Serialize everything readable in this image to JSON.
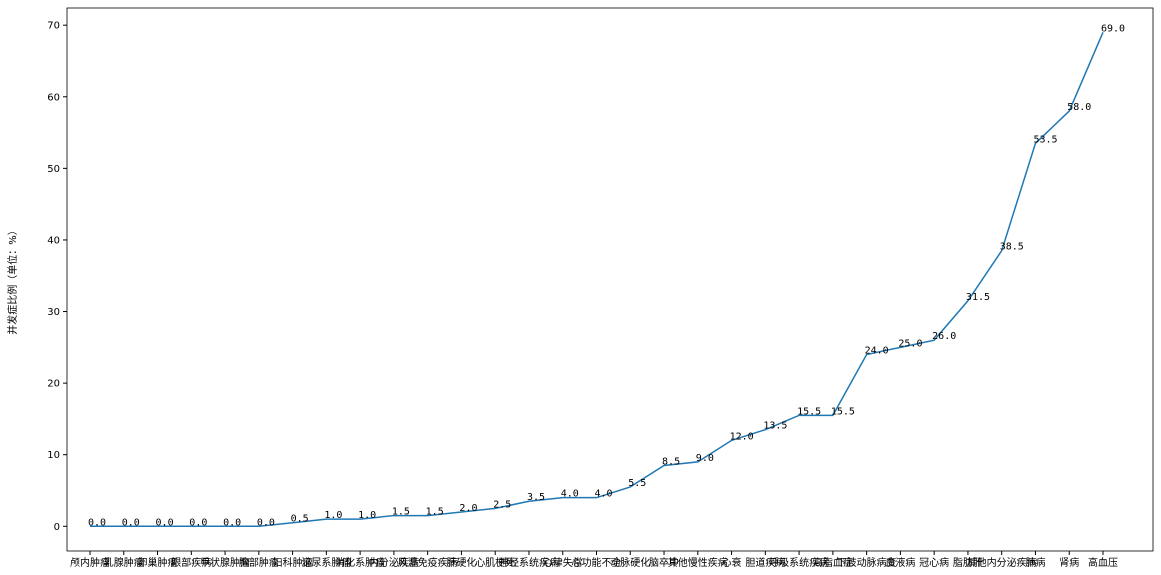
{
  "chart_data": {
    "type": "line",
    "ylabel": "并发症比例（单位：%）",
    "categories": [
      "颅内肿瘤",
      "乳腺肿瘤",
      "卵巢肿瘤",
      "眼部疾病",
      "甲状腺肿瘤",
      "胸部肿瘤",
      "妇科肿瘤",
      "泌尿系肿瘤",
      "消化系肿瘤",
      "内分泌疾病",
      "风湿免疫疾病",
      "肝硬化",
      "心肌梗死",
      "神经系统疾病",
      "心律失常",
      "心功能不全",
      "动脉硬化",
      "脑卒中",
      "其他慢性疾病",
      "心衰",
      "胆道疾病",
      "呼吸系统疾病",
      "高脂血症",
      "下肢动脉病变",
      "血液病",
      "冠心病",
      "脂肪肝",
      "其他内分泌疾病",
      "肺病",
      "肾病",
      "高血压"
    ],
    "series": [
      {
        "name": "并发症比例",
        "color": "#1f77b4",
        "values": [
          0,
          0,
          0,
          0,
          0,
          0,
          0.5,
          1,
          1,
          1.5,
          1.5,
          2,
          2.5,
          3.5,
          4,
          4,
          5.5,
          8.5,
          9,
          12,
          13.5,
          15.5,
          15.5,
          24,
          25,
          26,
          31.5,
          38.5,
          53.5,
          58,
          69
        ],
        "value_labels": [
          "0.0",
          "0.0",
          "0.0",
          "0.0",
          "0.0",
          "0.0",
          "0.5",
          "1.0",
          "1.0",
          "1.5",
          "1.5",
          "2.0",
          "2.5",
          "3.5",
          "4.0",
          "4.0",
          "5.5",
          "8.5",
          "9.0",
          "12.0",
          "13.5",
          "15.5",
          "15.5",
          "24.0",
          "25.0",
          "26.0",
          "31.5",
          "38.5",
          "53.5",
          "58.0",
          "69.0"
        ]
      }
    ],
    "ylim": [
      -3.45,
      72.4
    ],
    "yticks": [
      0,
      10,
      20,
      30,
      40,
      50,
      60,
      70
    ],
    "grid": false
  }
}
